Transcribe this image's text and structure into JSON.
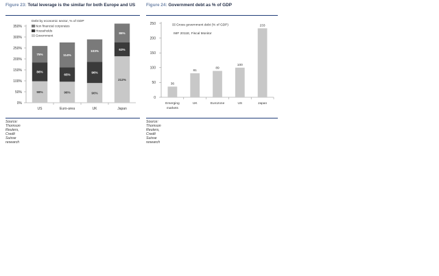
{
  "figures": [
    {
      "number": "Figure 23:",
      "title": "Total leverage is the similar for both Europe and US",
      "source": "Source: Thomson Reuters, Credit Suisse research"
    },
    {
      "number": "Figure 24:",
      "title": "Government debt as % of GDP",
      "source": "Source: Thomson Reuters, Credit Suisse research"
    }
  ],
  "chart_data": [
    {
      "type": "bar",
      "stacked": true,
      "legend_title": "Debt by economic sector, % of GDP",
      "categories": [
        "US",
        "Euro-area",
        "UK",
        "Japan"
      ],
      "series": [
        {
          "name": "Government",
          "values": [
            98,
            96,
            90,
            212
          ],
          "labels": [
            "98%",
            "96%",
            "90%",
            "212%"
          ],
          "color": "#c8c8c8"
        },
        {
          "name": "Households",
          "values": [
            86,
            65,
            96,
            63
          ],
          "labels": [
            "86%",
            "65%",
            "96%",
            "63%"
          ],
          "color": "#3a3a3a"
        },
        {
          "name": "Non financial corporates",
          "values": [
            75,
            114,
            103,
            86
          ],
          "labels": [
            "75%",
            "114%",
            "103%",
            "86%"
          ],
          "color": "#7a7a7a"
        }
      ],
      "y_ticks": [
        "0%",
        "50%",
        "100%",
        "150%",
        "200%",
        "250%",
        "300%",
        "350%"
      ],
      "ylim": [
        0,
        350
      ],
      "legend_position": "top-left"
    },
    {
      "type": "bar",
      "categories": [
        "Emerging markets",
        "UK",
        "Eurozone",
        "US",
        "Japan"
      ],
      "category_lines": [
        [
          "Emerging",
          "markets"
        ],
        [
          "UK"
        ],
        [
          "Eurozone"
        ],
        [
          "US"
        ],
        [
          "Japan"
        ]
      ],
      "series": [
        {
          "name": "Gross government debt (% of GDP)",
          "values": [
            36,
            81,
            89,
            100,
            233
          ],
          "labels": [
            "36",
            "81",
            "89",
            "100",
            "233"
          ],
          "color": "#c8c8c8"
        }
      ],
      "annotation": "IMF 2011E, Fiscal Monitor",
      "y_ticks": [
        "0",
        "50",
        "100",
        "150",
        "200",
        "250"
      ],
      "ylim": [
        0,
        250
      ],
      "legend_position": "top-left"
    }
  ]
}
